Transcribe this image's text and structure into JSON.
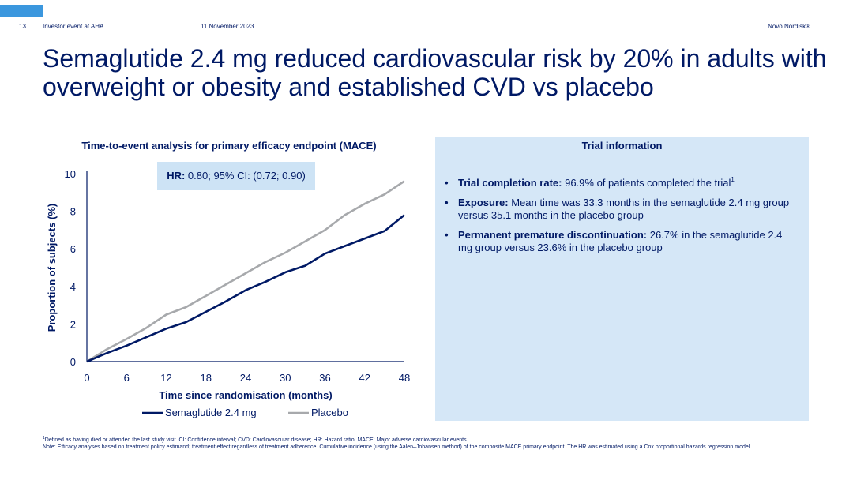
{
  "header": {
    "page_number": "13",
    "event": "Investor event at AHA",
    "date": "11 November 2023",
    "brand": "Novo Nordisk®"
  },
  "title": "Semaglutide 2.4 mg reduced cardiovascular risk by 20% in adults with overweight or obesity and established CVD vs placebo",
  "hr_box": {
    "label": "HR:",
    "value": "0.80; 95% CI: (0.72; 0.90)"
  },
  "info_panel": {
    "title": "Trial information",
    "bullets": [
      {
        "label": "Trial completion rate:",
        "text": "96.9% of patients completed the trial",
        "sup": "1"
      },
      {
        "label": "Exposure:",
        "text": "Mean time was 33.3 months in the semaglutide 2.4 mg group versus 35.1 months in the placebo group",
        "sup": ""
      },
      {
        "label": "Permanent premature discontinuation:",
        "text": "26.7% in the semaglutide 2.4 mg group versus 23.6% in the placebo group",
        "sup": ""
      }
    ]
  },
  "footer": {
    "sup": "1",
    "line1": "Defined as having died or attended the last study visit. CI: Confidence interval; CVD: Cardiovascular disease; HR: Hazard ratio; MACE: Major adverse cardiovascular events",
    "line2": "Note: Efficacy analyses based on treatment policy estimand; treatment effect regardless of treatment adherence. Cumulative incidence (using the Aalen–Johansen method) of the composite MACE primary endpoint. The HR was estimated using a Cox proportional hazards regression model."
  },
  "chart_data": {
    "type": "line",
    "title": "Time-to-event analysis for primary efficacy endpoint (MACE)",
    "xlabel": "Time since randomisation (months)",
    "ylabel": "Proportion of subjects (%)",
    "xlim": [
      0,
      48
    ],
    "ylim": [
      0,
      10
    ],
    "x_ticks": [
      0,
      6,
      12,
      18,
      24,
      30,
      36,
      42,
      48
    ],
    "y_ticks": [
      0,
      2,
      4,
      6,
      8,
      10
    ],
    "grid": false,
    "legend_position": "bottom",
    "series": [
      {
        "name": "Semaglutide 2.4 mg",
        "color": "#001965",
        "x": [
          0,
          3,
          6,
          9,
          12,
          15,
          18,
          21,
          24,
          27,
          30,
          33,
          36,
          39,
          42,
          45,
          48
        ],
        "y": [
          0,
          0.45,
          0.85,
          1.3,
          1.75,
          2.1,
          2.65,
          3.2,
          3.8,
          4.25,
          4.75,
          5.1,
          5.75,
          6.15,
          6.55,
          6.95,
          7.8
        ]
      },
      {
        "name": "Placebo",
        "color": "#a7a9ac",
        "x": [
          0,
          3,
          6,
          9,
          12,
          15,
          18,
          21,
          24,
          27,
          30,
          33,
          36,
          39,
          42,
          45,
          48
        ],
        "y": [
          0,
          0.65,
          1.2,
          1.8,
          2.5,
          2.9,
          3.5,
          4.1,
          4.7,
          5.3,
          5.8,
          6.4,
          7.0,
          7.8,
          8.4,
          8.9,
          9.6
        ]
      }
    ]
  }
}
